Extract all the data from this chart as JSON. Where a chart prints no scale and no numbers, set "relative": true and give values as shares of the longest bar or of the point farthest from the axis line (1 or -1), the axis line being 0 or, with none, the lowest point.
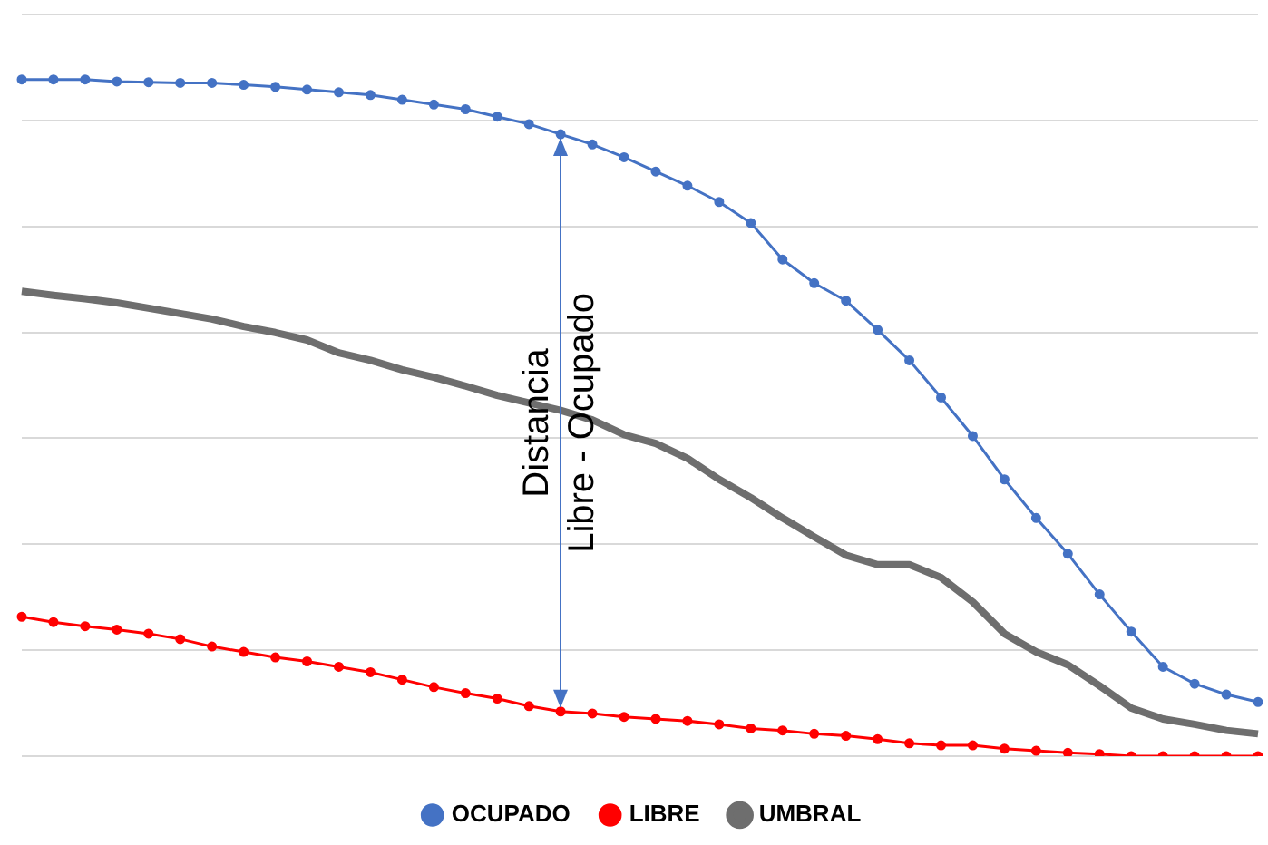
{
  "chart_data": {
    "type": "line",
    "relative": true,
    "grid": "y",
    "legend": "bottom",
    "categories": [
      null,
      null,
      null,
      null,
      null,
      null,
      null,
      null,
      null,
      null,
      null,
      null,
      null,
      null,
      null,
      null,
      null,
      null,
      null,
      null,
      null,
      null,
      null,
      null,
      null,
      null,
      null,
      null,
      null,
      null,
      null,
      null,
      null,
      null,
      null,
      null,
      null,
      null,
      null,
      null
    ],
    "annotations": [
      "Distancia\nLibre - Ocupado"
    ],
    "series": [
      {
        "name": "OCUPADO",
        "color": "#4472c4",
        "marker": "circle",
        "values": [
          1.0,
          1.0,
          1.0,
          0.997,
          0.996,
          0.995,
          0.995,
          0.992,
          0.989,
          0.985,
          0.981,
          0.977,
          0.97,
          0.963,
          0.956,
          0.945,
          0.934,
          0.919,
          0.904,
          0.885,
          0.864,
          0.843,
          0.819,
          0.788,
          0.734,
          0.699,
          0.673,
          0.63,
          0.585,
          0.53,
          0.473,
          0.409,
          0.352,
          0.299,
          0.239,
          0.184,
          0.132,
          0.107,
          0.091,
          0.08
        ]
      },
      {
        "name": "LIBRE",
        "color": "#ff0000",
        "marker": "circle",
        "values": [
          0.206,
          0.198,
          0.192,
          0.187,
          0.181,
          0.173,
          0.162,
          0.154,
          0.146,
          0.14,
          0.132,
          0.124,
          0.113,
          0.102,
          0.093,
          0.085,
          0.074,
          0.066,
          0.063,
          0.058,
          0.055,
          0.052,
          0.047,
          0.041,
          0.038,
          0.033,
          0.03,
          0.025,
          0.019,
          0.016,
          0.016,
          0.011,
          0.008,
          0.005,
          0.003,
          0,
          0,
          0,
          0,
          0
        ]
      },
      {
        "name": "UMBRAL",
        "color": "#6e6e6e",
        "marker": "none",
        "values": [
          0.687,
          0.681,
          0.676,
          0.67,
          0.662,
          0.654,
          0.646,
          0.635,
          0.626,
          0.615,
          0.596,
          0.585,
          0.571,
          0.56,
          0.547,
          0.533,
          0.522,
          0.511,
          0.497,
          0.475,
          0.462,
          0.44,
          0.409,
          0.382,
          0.352,
          0.324,
          0.297,
          0.283,
          0.283,
          0.264,
          0.228,
          0.181,
          0.154,
          0.135,
          0.104,
          0.071,
          0.055,
          0.047,
          0.038,
          0.033
        ]
      }
    ]
  }
}
